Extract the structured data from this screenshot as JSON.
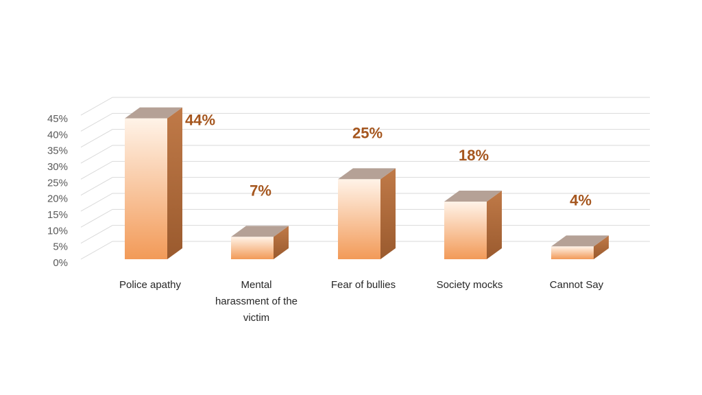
{
  "chart_data": {
    "type": "bar",
    "style": "3d-column",
    "categories": [
      [
        "Police apathy"
      ],
      [
        "Mental",
        "harassment of the",
        "victim"
      ],
      [
        "Fear of bullies"
      ],
      [
        "Society mocks"
      ],
      [
        "Cannot Say"
      ]
    ],
    "values": [
      44,
      7,
      25,
      18,
      4
    ],
    "data_labels": [
      "44%",
      "7%",
      "25%",
      "18%",
      "4%"
    ],
    "ylim": [
      0,
      45
    ],
    "y_ticks": [
      "0%",
      "5%",
      "10%",
      "15%",
      "20%",
      "25%",
      "30%",
      "35%",
      "40%",
      "45%"
    ],
    "grid": true,
    "legend": "none",
    "colors": {
      "bar_front_light": "#FFF3E8",
      "bar_front_dark": "#F29A58",
      "bar_top": "#B5A196",
      "bar_side": "#C07A48",
      "label": "#A5561E",
      "grid": "#D9D9D9"
    }
  }
}
